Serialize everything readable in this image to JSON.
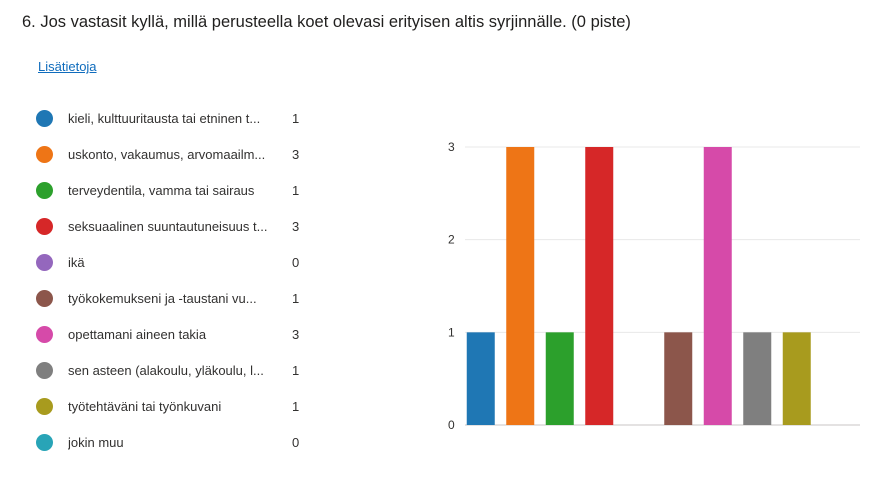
{
  "question": {
    "title": "6.  Jos vastasit kyllä, millä perusteella koet olevasi erityisen altis syrjinnälle. (0 piste)",
    "more_link": "Lisätietoja"
  },
  "legend": [
    {
      "label": "kieli, kulttuuritausta tai etninen t...",
      "count": "1",
      "color": "#1f77b4"
    },
    {
      "label": "uskonto, vakaumus, arvomaailm...",
      "count": "3",
      "color": "#ee7516"
    },
    {
      "label": "terveydentila, vamma tai sairaus",
      "count": "1",
      "color": "#2ca02c"
    },
    {
      "label": "seksuaalinen suuntautuneisuus t...",
      "count": "3",
      "color": "#d62728"
    },
    {
      "label": "ikä",
      "count": "0",
      "color": "#9467bd"
    },
    {
      "label": "työkokemukseni ja -taustani vu...",
      "count": "1",
      "color": "#8c564b"
    },
    {
      "label": "opettamani aineen takia",
      "count": "3",
      "color": "#d64aa9"
    },
    {
      "label": "sen asteen (alakoulu, yläkoulu, l...",
      "count": "1",
      "color": "#7f7f7f"
    },
    {
      "label": "työtehtäväni tai työnkuvani",
      "count": "1",
      "color": "#a89b1e"
    },
    {
      "label": "jokin muu",
      "count": "0",
      "color": "#28a4b7"
    }
  ],
  "chart_data": {
    "type": "bar",
    "categories": [
      "kieli, kulttuuritausta tai etninen t...",
      "uskonto, vakaumus, arvomaailm...",
      "terveydentila, vamma tai sairaus",
      "seksuaalinen suuntautuneisuus t...",
      "ikä",
      "työkokemukseni ja -taustani vu...",
      "opettamani aineen takia",
      "sen asteen (alakoulu, yläkoulu, l...",
      "työtehtäväni tai työnkuvani",
      "jokin muu"
    ],
    "values": [
      1,
      3,
      1,
      3,
      0,
      1,
      3,
      1,
      1,
      0
    ],
    "colors": [
      "#1f77b4",
      "#ee7516",
      "#2ca02c",
      "#d62728",
      "#9467bd",
      "#8c564b",
      "#d64aa9",
      "#7f7f7f",
      "#a89b1e",
      "#28a4b7"
    ],
    "ylim": [
      0,
      3
    ],
    "yticks": [
      "0",
      "1",
      "2",
      "3"
    ],
    "grid": true,
    "title": "",
    "xlabel": "",
    "ylabel": ""
  }
}
